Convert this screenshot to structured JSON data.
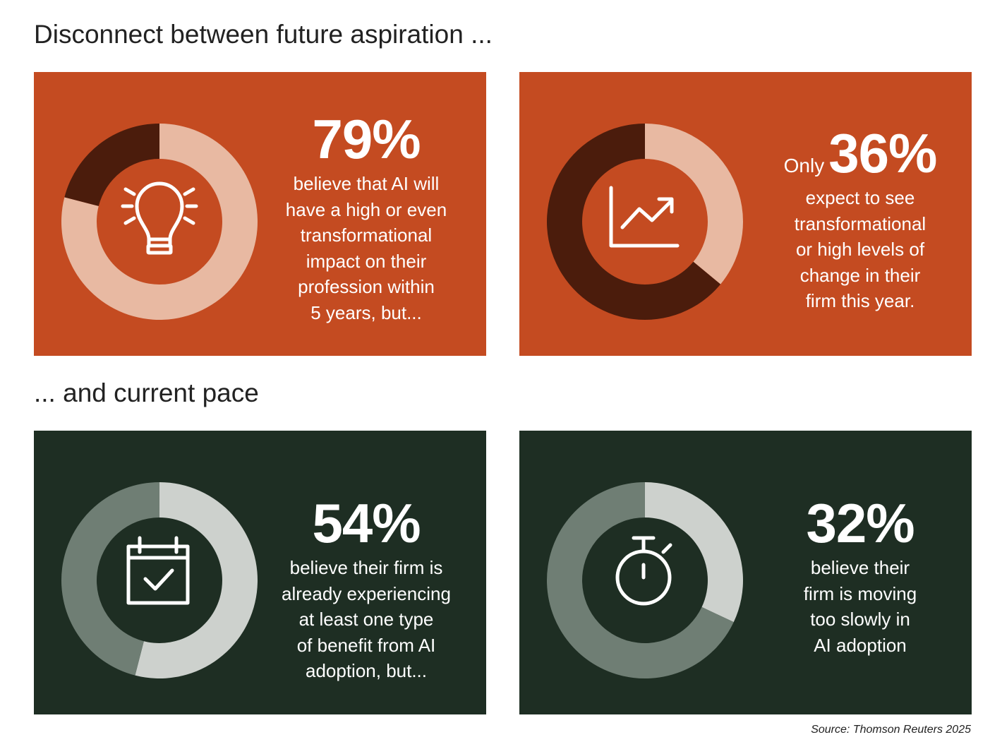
{
  "headings": {
    "aspiration": "Disconnect between future aspiration ...",
    "pace": "... and current pace"
  },
  "colors": {
    "orange_panel": "#c44b21",
    "orange_dark": "#4b1c0c",
    "orange_light": "#e8b9a2",
    "green_panel": "#1e2e23",
    "green_mid": "#6f7e74",
    "green_light": "#cdd1cd"
  },
  "chart_data": [
    {
      "type": "pie",
      "variant": "donut",
      "value": 79,
      "value_label": "79%",
      "prefix": "",
      "description": [
        "believe that AI will",
        "have a high or even",
        "transformational",
        "impact on their",
        "profession within",
        "5 years, but..."
      ],
      "icon": "lightbulb-icon",
      "theme": "orange"
    },
    {
      "type": "pie",
      "variant": "donut",
      "value": 36,
      "value_label": "36%",
      "prefix": "Only",
      "description": [
        "expect to see",
        "transformational",
        "or high levels of",
        "change in their",
        "firm this year."
      ],
      "icon": "growth-chart-icon",
      "theme": "orange"
    },
    {
      "type": "pie",
      "variant": "donut",
      "value": 54,
      "value_label": "54%",
      "prefix": "",
      "description": [
        "believe their firm is",
        "already experiencing",
        "at least one type",
        "of benefit from AI",
        "adoption, but..."
      ],
      "icon": "calendar-check-icon",
      "theme": "green"
    },
    {
      "type": "pie",
      "variant": "donut",
      "value": 32,
      "value_label": "32%",
      "prefix": "",
      "description": [
        "believe their",
        "firm is moving",
        "too slowly in",
        "AI adoption"
      ],
      "icon": "stopwatch-icon",
      "theme": "green"
    }
  ],
  "source": "Source: Thomson Reuters 2025"
}
